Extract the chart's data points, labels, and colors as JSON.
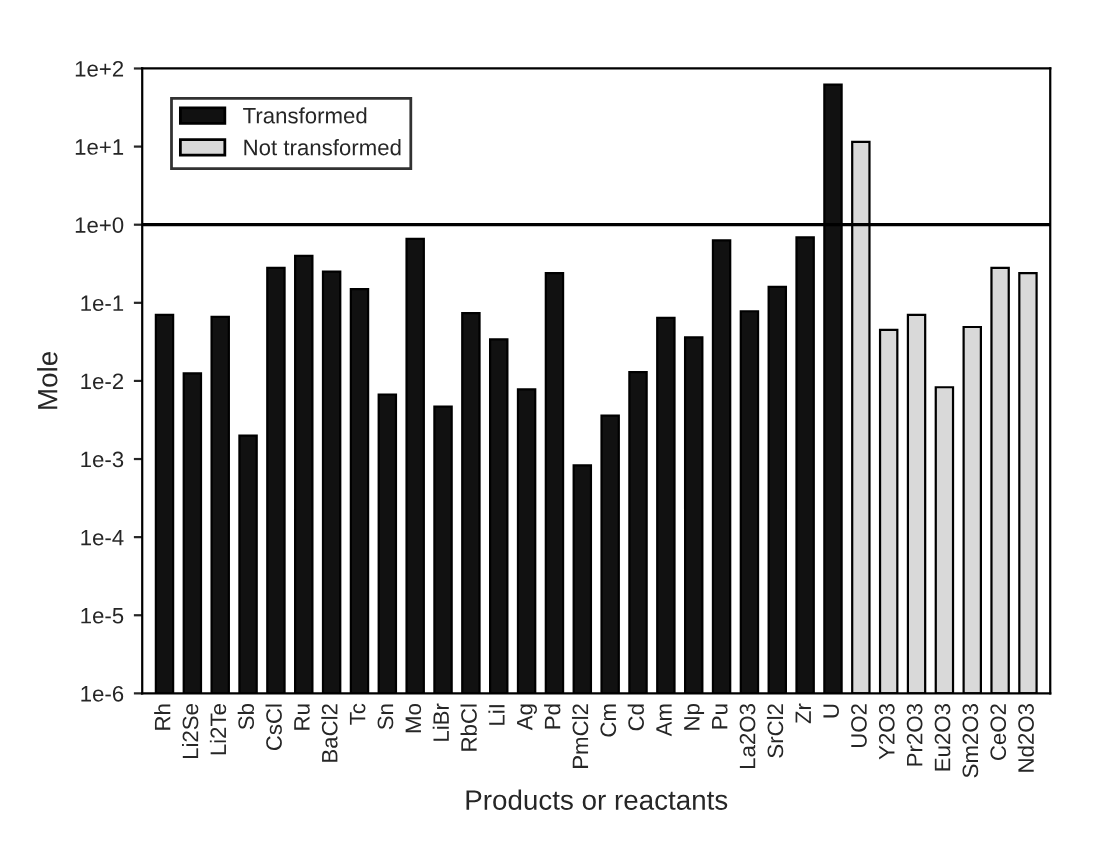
{
  "chart_data": {
    "type": "bar",
    "xlabel": "Products or reactants",
    "ylabel": "Mole",
    "categories": [
      "Rh",
      "Li2Se",
      "Li2Te",
      "Sb",
      "CsCl",
      "Ru",
      "BaCl2",
      "Tc",
      "Sn",
      "Mo",
      "LiBr",
      "RbCl",
      "LiI",
      "Ag",
      "Pd",
      "PmCl2",
      "Cm",
      "Cd",
      "Am",
      "Np",
      "Pu",
      "La2O3",
      "SrCl2",
      "Zr",
      "U",
      "UO2",
      "Y2O3",
      "Pr2O3",
      "Eu2O3",
      "Sm2O3",
      "CeO2",
      "Nd2O3"
    ],
    "series": [
      {
        "name": "Transformed",
        "color": "#111111",
        "values": [
          0.07,
          0.0125,
          0.066,
          0.002,
          0.28,
          0.4,
          0.25,
          0.15,
          0.0067,
          0.66,
          0.0047,
          0.074,
          0.034,
          0.0078,
          0.24,
          0.00083,
          0.0036,
          0.013,
          0.064,
          0.036,
          0.63,
          0.078,
          0.16,
          0.69,
          62,
          null,
          null,
          null,
          null,
          null,
          null,
          null
        ]
      },
      {
        "name": "Not transformed",
        "color": "#d9d9d9",
        "values": [
          null,
          null,
          null,
          null,
          null,
          null,
          null,
          null,
          null,
          null,
          null,
          null,
          null,
          null,
          null,
          null,
          null,
          null,
          null,
          null,
          null,
          null,
          null,
          null,
          null,
          11.5,
          0.045,
          0.07,
          0.0083,
          0.049,
          0.28,
          0.24
        ]
      }
    ],
    "log": true,
    "ylim": [
      1e-06,
      100
    ],
    "yticks": [
      {
        "value": 1e-06,
        "label": "1e-6"
      },
      {
        "value": 1e-05,
        "label": "1e-5"
      },
      {
        "value": 0.0001,
        "label": "1e-4"
      },
      {
        "value": 0.001,
        "label": "1e-3"
      },
      {
        "value": 0.01,
        "label": "1e-2"
      },
      {
        "value": 0.1,
        "label": "1e-1"
      },
      {
        "value": 1,
        "label": "1e+0"
      },
      {
        "value": 10,
        "label": "1e+1"
      },
      {
        "value": 100,
        "label": "1e+2"
      }
    ],
    "ref_lines": [
      {
        "axis": "y",
        "value": 1,
        "label": null,
        "color": "#000000"
      }
    ],
    "legend": "top left",
    "grid": false
  }
}
